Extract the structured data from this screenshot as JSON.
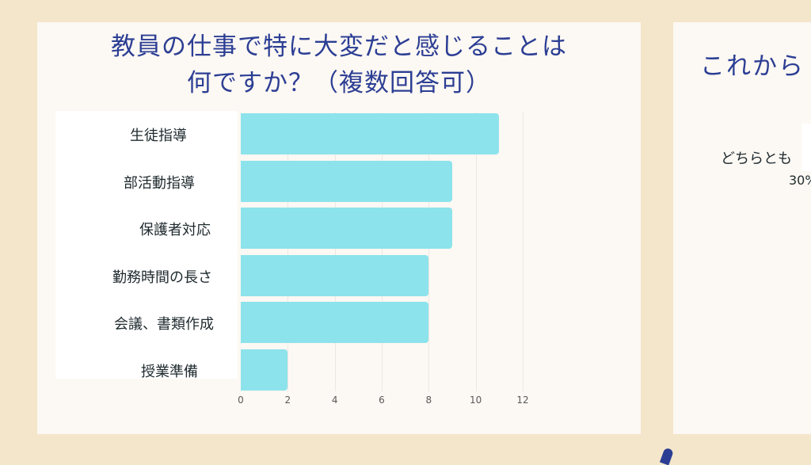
{
  "left_card": {
    "title_line1": "教員の仕事で特に大変だと感じることは",
    "title_line2": "何ですか？（複数回答可）"
  },
  "right_card": {
    "title": "これから",
    "label": "どちらとも",
    "percent": "30%"
  },
  "chart_data": {
    "type": "bar",
    "orientation": "horizontal",
    "title": "教員の仕事で特に大変だと感じることは何ですか？（複数回答可）",
    "categories": [
      "生徒指導",
      "部活動指導",
      "保護者対応",
      "勤務時間の長さ",
      "会議、書類作成",
      "授業準備"
    ],
    "values": [
      11,
      9,
      9,
      8,
      8,
      2
    ],
    "xlabel": "",
    "ylabel": "",
    "xlim": [
      0,
      12
    ],
    "xticks": [
      "0",
      "2",
      "4",
      "6",
      "8",
      "10",
      "12"
    ],
    "grid": true,
    "bar_color": "#8ce3eb"
  },
  "colors": {
    "background": "#f4e6cb",
    "card": "#fcf8f3",
    "title": "#2c3e94",
    "bar": "#8ce3eb"
  }
}
